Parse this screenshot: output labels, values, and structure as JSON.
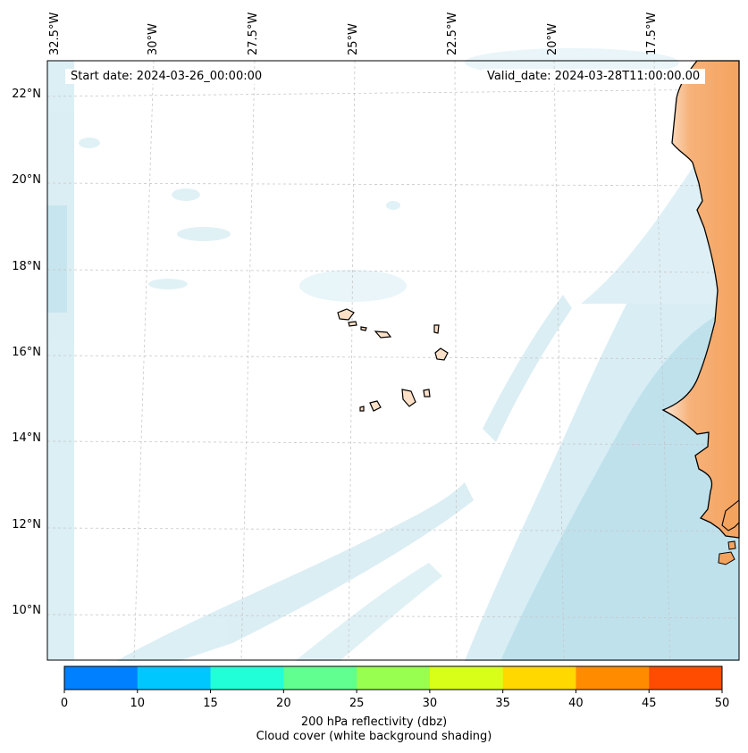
{
  "map": {
    "start_label": "Start date: 2024-03-26_00:00:00",
    "valid_label": "Valid_date: 2024-03-28T11:00:00.00",
    "lon_labels": [
      "32.5°W",
      "30°W",
      "27.5°W",
      "25°W",
      "22.5°W",
      "20°W",
      "17.5°W"
    ],
    "lat_labels": [
      "22°N",
      "20°N",
      "18°N",
      "16°N",
      "14°N",
      "12°N",
      "10°N"
    ],
    "colors": {
      "land": "#f4a35f",
      "land_light": "#fde0c8",
      "cloud": "#a9d8e6",
      "coast": "#000000",
      "grid": "#bbbbbb"
    }
  },
  "colorbar": {
    "ticks": [
      "0",
      "10",
      "15",
      "20",
      "25",
      "30",
      "35",
      "40",
      "45",
      "50"
    ],
    "colors": [
      "#0080ff",
      "#00c8ff",
      "#20ffd8",
      "#60ff90",
      "#98ff50",
      "#d8ff18",
      "#ffd800",
      "#ff8c00",
      "#ff4c00"
    ],
    "label_line1": "200 hPa reflectivity (dbz)",
    "label_line2": "Cloud cover (white background shading)"
  }
}
